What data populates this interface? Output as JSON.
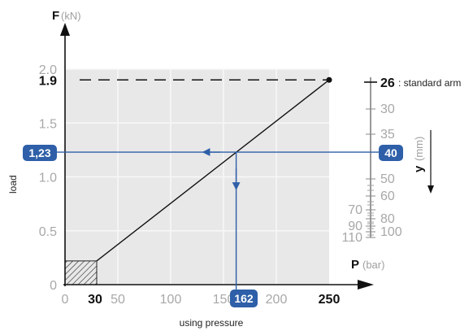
{
  "chart_data": {
    "type": "line",
    "title": "",
    "y_axis": {
      "letter": "F",
      "unit": "(kN)",
      "label": "load",
      "range": [
        0,
        2.0
      ],
      "ticks": [
        "0",
        "0.5",
        "1.0",
        "1.5",
        "2.0"
      ],
      "highlight_tick": "1.9"
    },
    "x_axis": {
      "letter": "P",
      "unit": "(bar)",
      "label": "using pressure",
      "range": [
        0,
        250
      ],
      "ticks": [
        "0",
        "50",
        "100",
        "150",
        "200"
      ],
      "dark_ticks": [
        "30",
        "250"
      ]
    },
    "right_axis": {
      "letter": "y",
      "unit": "(mm)",
      "ticks": [
        "30",
        "35",
        "50",
        "60",
        "70",
        "80",
        "90",
        "100",
        "110"
      ],
      "standard_value": "26",
      "standard_label": ": standard arm"
    },
    "series": [
      {
        "points": [
          {
            "x": 30,
            "y": 0.22
          },
          {
            "x": 250,
            "y": 1.9
          }
        ]
      }
    ],
    "example": {
      "y_value": "40",
      "force": "1,23",
      "pressure": "162"
    },
    "hatched_region": {
      "x": [
        0,
        30
      ],
      "y": [
        0,
        0.22
      ]
    },
    "grid": true
  },
  "colors": {
    "accent": "#2e5fa8",
    "plot_bg": "#e8e8e8",
    "grid": "#f7f7f7",
    "line": "#111111"
  }
}
